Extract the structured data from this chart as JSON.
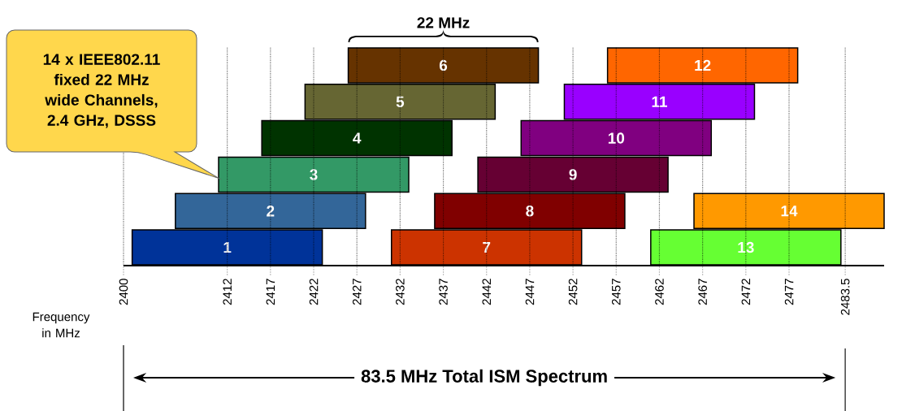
{
  "chart_data": {
    "type": "bar",
    "orientation": "horizontal",
    "categories": [
      null,
      null,
      null,
      null,
      null,
      null
    ],
    "series": [
      {
        "name": "1",
        "color": "#003399",
        "values": [
          null,
          null,
          null,
          null,
          null,
          22
        ],
        "base": [
          null,
          null,
          null,
          null,
          null,
          2401
        ]
      },
      {
        "name": "2",
        "color": "#336699",
        "values": [
          null,
          null,
          null,
          null,
          22,
          null
        ],
        "base": [
          null,
          null,
          null,
          null,
          2406,
          null
        ]
      },
      {
        "name": "3",
        "color": "#339966",
        "values": [
          null,
          null,
          null,
          22,
          null,
          null
        ],
        "base": [
          null,
          null,
          null,
          2411,
          null,
          null
        ]
      },
      {
        "name": "4",
        "color": "#003300",
        "values": [
          null,
          null,
          22,
          null,
          null,
          null
        ],
        "base": [
          null,
          null,
          2416,
          null,
          null,
          null
        ]
      },
      {
        "name": "5",
        "color": "#666633",
        "values": [
          null,
          22,
          null,
          null,
          null,
          null
        ],
        "base": [
          null,
          2421,
          null,
          null,
          null,
          null
        ]
      },
      {
        "name": "6",
        "color": "#663300",
        "values": [
          22,
          null,
          null,
          null,
          null,
          null
        ],
        "base": [
          2426,
          null,
          null,
          null,
          null,
          null
        ]
      },
      {
        "name": "7",
        "color": "#cc3300",
        "values": [
          null,
          null,
          null,
          null,
          null,
          22
        ],
        "base": [
          null,
          null,
          null,
          null,
          null,
          2431
        ]
      },
      {
        "name": "8",
        "color": "#800000",
        "values": [
          null,
          null,
          null,
          null,
          22,
          null
        ],
        "base": [
          null,
          null,
          null,
          null,
          2436,
          null
        ]
      },
      {
        "name": "9",
        "color": "#660033",
        "values": [
          null,
          null,
          null,
          22,
          null,
          null
        ],
        "base": [
          null,
          null,
          null,
          2441,
          null,
          null
        ]
      },
      {
        "name": "10",
        "color": "#800080",
        "values": [
          null,
          null,
          22,
          null,
          null,
          null
        ],
        "base": [
          null,
          null,
          2446,
          null,
          null,
          null
        ]
      },
      {
        "name": "11",
        "color": "#9900ff",
        "values": [
          null,
          22,
          null,
          null,
          null,
          null
        ],
        "base": [
          null,
          2451,
          null,
          null,
          null,
          null
        ]
      },
      {
        "name": "12",
        "color": "#ff6600",
        "values": [
          22,
          null,
          null,
          null,
          null,
          null
        ],
        "base": [
          2456,
          null,
          null,
          null,
          null,
          null
        ]
      },
      {
        "name": "13",
        "color": "#66ff33",
        "values": [
          null,
          null,
          null,
          null,
          null,
          22
        ],
        "base": [
          null,
          null,
          null,
          null,
          null,
          2461
        ]
      },
      {
        "name": "14",
        "color": "#ff9900",
        "values": [
          null,
          null,
          null,
          null,
          22,
          null
        ],
        "base": [
          null,
          null,
          null,
          null,
          2466,
          null
        ]
      }
    ],
    "xlabel": "Frequency in MHz",
    "xlim": [
      2400,
      2488
    ],
    "xticks": [
      2400,
      2412,
      2417,
      2422,
      2427,
      2432,
      2437,
      2442,
      2447,
      2452,
      2457,
      2462,
      2467,
      2472,
      2477,
      2483.5
    ],
    "grid": "x",
    "annotations": [
      "22 MHz",
      "14 x IEEE802.11 fixed 22 MHz wide Channels, 2.4 GHz, DSSS",
      "83.5 MHz Total ISM Spectrum"
    ]
  }
}
